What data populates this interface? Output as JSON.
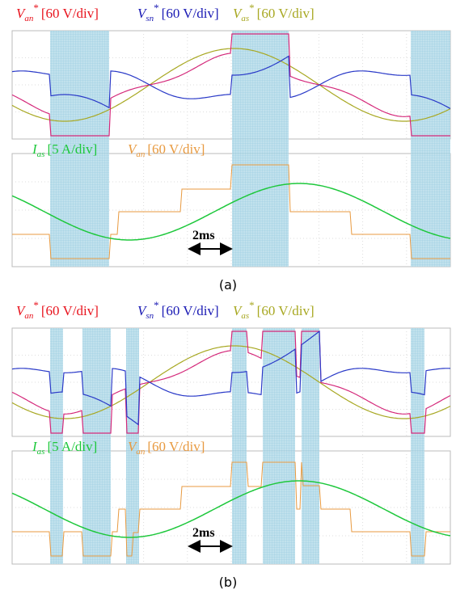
{
  "figures": [
    {
      "legend": [
        {
          "symbol": "V",
          "sub": "an",
          "sup": "*",
          "scale": "[60 V/div]"
        },
        {
          "symbol": "V",
          "sub": "sn",
          "sup": "*",
          "scale": "[60 V/div]"
        },
        {
          "symbol": "V",
          "sub": "as",
          "sup": "*",
          "scale": "[60 V/div]"
        }
      ],
      "lower_labels": [
        {
          "symbol": "I",
          "sub": "as",
          "scale": "[5 A/div]"
        },
        {
          "symbol": "V",
          "sub": "an",
          "scale": "[60 V/div]"
        }
      ],
      "time_scale": "2ms",
      "caption": "(a)"
    },
    {
      "legend": [
        {
          "symbol": "V",
          "sub": "an",
          "sup": "*",
          "scale": "[60 V/div]"
        },
        {
          "symbol": "V",
          "sub": "sn",
          "sup": "*",
          "scale": "[60 V/div]"
        },
        {
          "symbol": "V",
          "sub": "as",
          "sup": "*",
          "scale": "[60 V/div]"
        }
      ],
      "lower_labels": [
        {
          "symbol": "I",
          "sub": "as",
          "scale": "[5 A/div]"
        },
        {
          "symbol": "V",
          "sub": "an",
          "scale": "[60 V/div]"
        }
      ],
      "time_scale": "2ms",
      "caption": "(b)"
    }
  ]
}
